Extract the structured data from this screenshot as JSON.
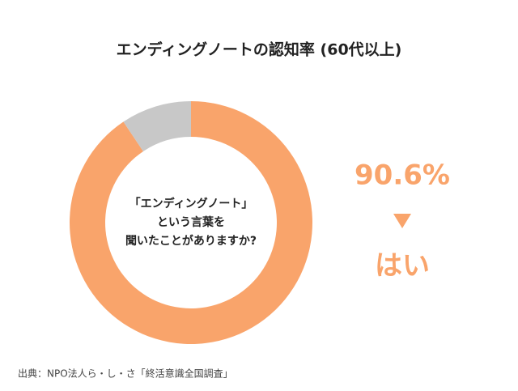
{
  "chart_data": {
    "type": "donut",
    "title": "エンディングノートの認知率 (60代以上)",
    "categories": [
      "はい",
      null
    ],
    "values": [
      90.6,
      9.4
    ],
    "value_labels": [
      "90.6%",
      null
    ],
    "colors": [
      "#f9a46b",
      "#c8c8c8"
    ],
    "center_text": [
      "「エンディングノート」",
      "という言葉を",
      "聞いたことがありますか?"
    ],
    "source": "出典：NPO法人ら・し・さ「終活意識全国調査」"
  }
}
